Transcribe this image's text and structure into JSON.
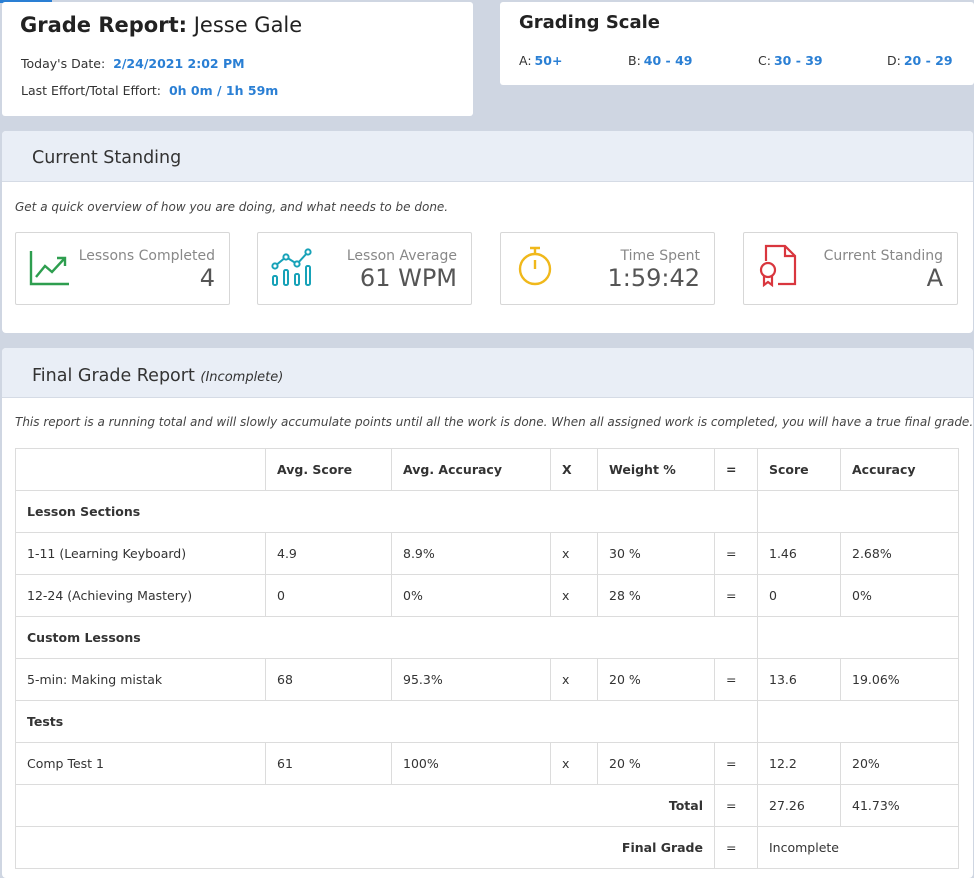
{
  "grade_card": {
    "title_bold": "Grade Report:",
    "student_name": "Jesse Gale",
    "date_label": "Today's Date:",
    "date_value": "2/24/2021 2:02 PM",
    "effort_label": "Last Effort/Total Effort:",
    "effort_value": "0h 0m / 1h 59m"
  },
  "grading_scale": {
    "title": "Grading Scale",
    "items": [
      {
        "letter": "A:",
        "range": "50+"
      },
      {
        "letter": "B:",
        "range": "40 - 49"
      },
      {
        "letter": "C:",
        "range": "30 - 39"
      },
      {
        "letter": "D:",
        "range": "20 - 29"
      }
    ]
  },
  "current_standing": {
    "title": "Current Standing",
    "intro": "Get a quick overview of how you are doing, and what needs to be done.",
    "stats": [
      {
        "label": "Lessons Completed",
        "value": "4",
        "icon": "trend-chart-icon",
        "color": "#2e9e4f"
      },
      {
        "label": "Lesson Average",
        "value": "61 WPM",
        "icon": "bar-line-chart-icon",
        "color": "#17a2b8"
      },
      {
        "label": "Time Spent",
        "value": "1:59:42",
        "icon": "stopwatch-icon",
        "color": "#f0b81b"
      },
      {
        "label": "Current Standing",
        "value": "A",
        "icon": "certificate-icon",
        "color": "#d9363e"
      }
    ]
  },
  "final_report": {
    "title": "Final Grade Report",
    "status": "(Incomplete)",
    "intro": "This report is a running total and will slowly accumulate points until all the work is done. When all assigned work is completed, you will have a true final grade.",
    "headers": [
      "",
      "Avg. Score",
      "Avg. Accuracy",
      "X",
      "Weight %",
      "=",
      "Score",
      "Accuracy"
    ],
    "sections": [
      {
        "name": "Lesson Sections",
        "rows": [
          {
            "name": "1-11 (Learning Keyboard)",
            "avg_score": "4.9",
            "avg_accuracy": "8.9%",
            "x": "x",
            "weight": "30 %",
            "eq": "=",
            "score": "1.46",
            "accuracy": "2.68%"
          },
          {
            "name": "12-24 (Achieving Mastery)",
            "avg_score": "0",
            "avg_accuracy": "0%",
            "x": "x",
            "weight": "28 %",
            "eq": "=",
            "score": "0",
            "accuracy": "0%"
          }
        ]
      },
      {
        "name": "Custom Lessons",
        "rows": [
          {
            "name": "5-min: Making mistak",
            "avg_score": "68",
            "avg_accuracy": "95.3%",
            "x": "x",
            "weight": "20 %",
            "eq": "=",
            "score": "13.6",
            "accuracy": "19.06%"
          }
        ]
      },
      {
        "name": "Tests",
        "rows": [
          {
            "name": "Comp Test 1",
            "avg_score": "61",
            "avg_accuracy": "100%",
            "x": "x",
            "weight": "20 %",
            "eq": "=",
            "score": "12.2",
            "accuracy": "20%"
          }
        ]
      }
    ],
    "total": {
      "label": "Total",
      "eq": "=",
      "score": "27.26",
      "accuracy": "41.73%"
    },
    "final_grade": {
      "label": "Final Grade",
      "eq": "=",
      "value": "Incomplete"
    }
  }
}
